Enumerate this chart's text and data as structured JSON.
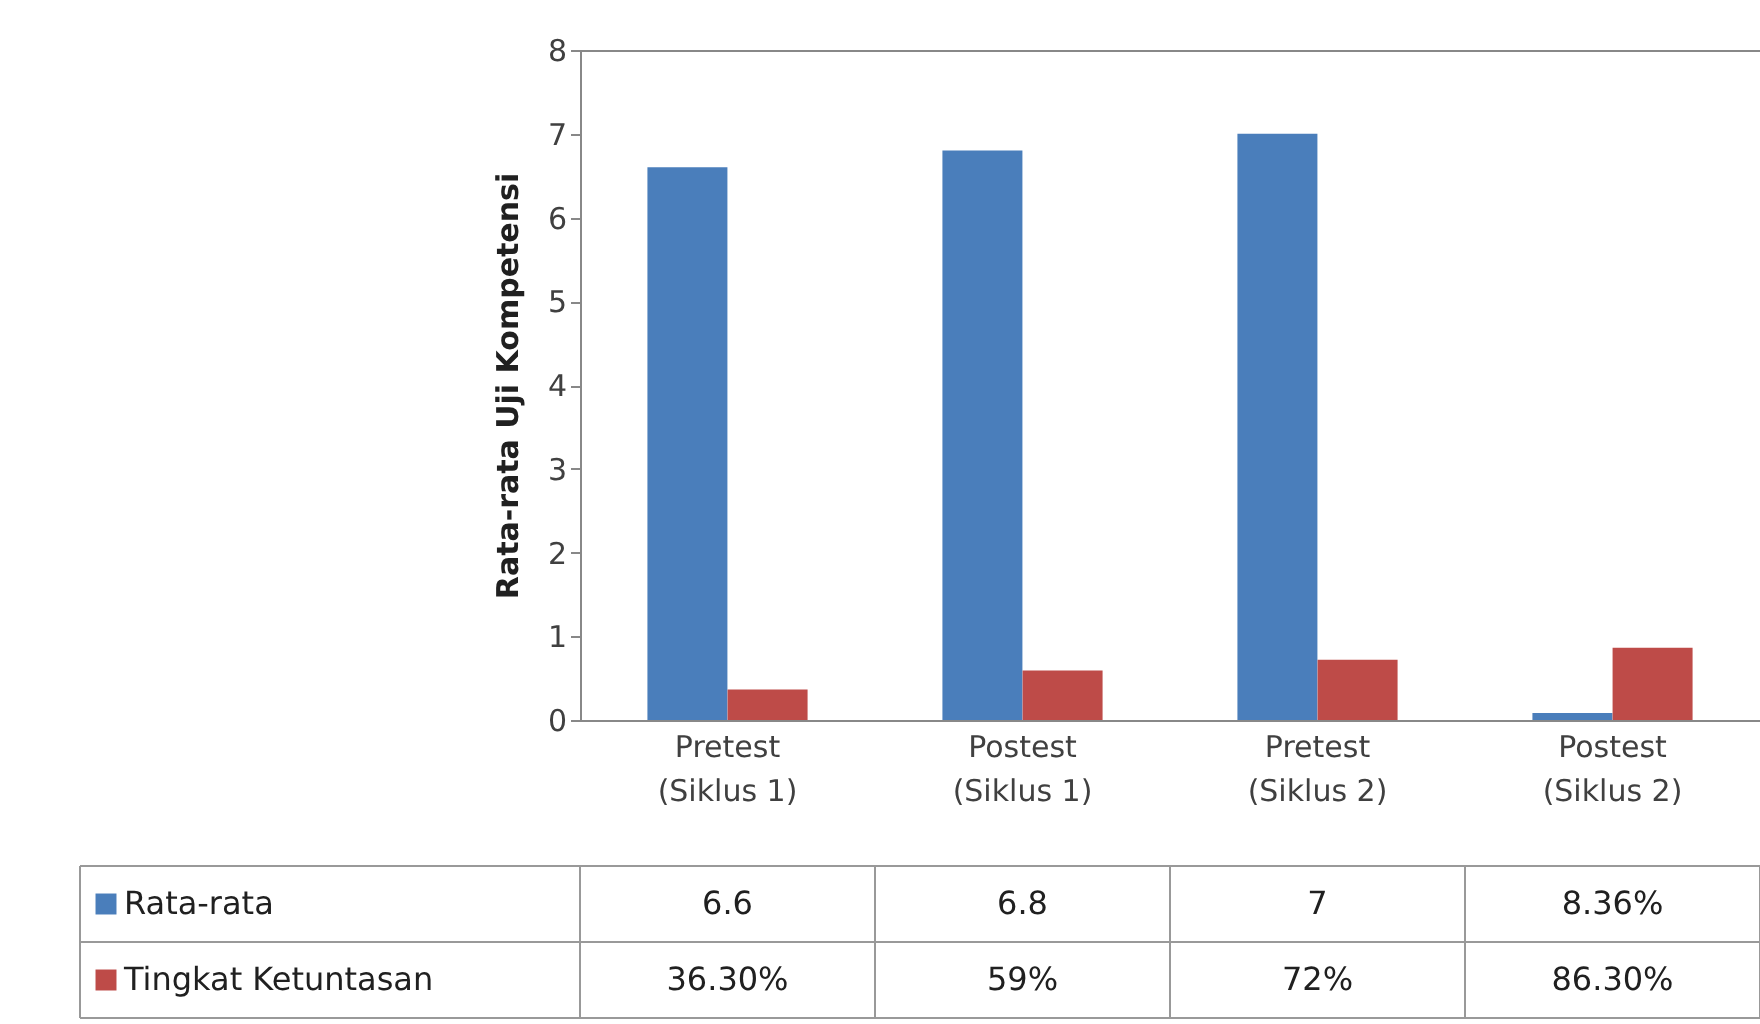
{
  "chart_data": {
    "type": "bar",
    "ylabel": "Rata-rata Uji Kompetensi",
    "categories": [
      "Pretest\n(Siklus 1)",
      "Postest\n(Siklus 1)",
      "Pretest\n(Siklus 2)",
      "Postest\n(Siklus 2)"
    ],
    "series": [
      {
        "name": "Rata-rata",
        "color": "#4a7ebb",
        "values": [
          6.6,
          6.8,
          7,
          0.0836
        ],
        "value_labels": [
          "6.6",
          "6.8",
          "7",
          "8.36%"
        ]
      },
      {
        "name": "Tingkat Ketuntasan",
        "color": "#be4b48",
        "values": [
          0.363,
          0.59,
          0.72,
          0.863
        ],
        "value_labels": [
          "36.30%",
          "59%",
          "72%",
          "86.30%"
        ]
      }
    ],
    "ylim": [
      0,
      8
    ],
    "yticks": [
      0,
      1,
      2,
      3,
      4,
      5,
      6,
      7,
      8
    ],
    "grid": false,
    "legend": "bottom"
  }
}
